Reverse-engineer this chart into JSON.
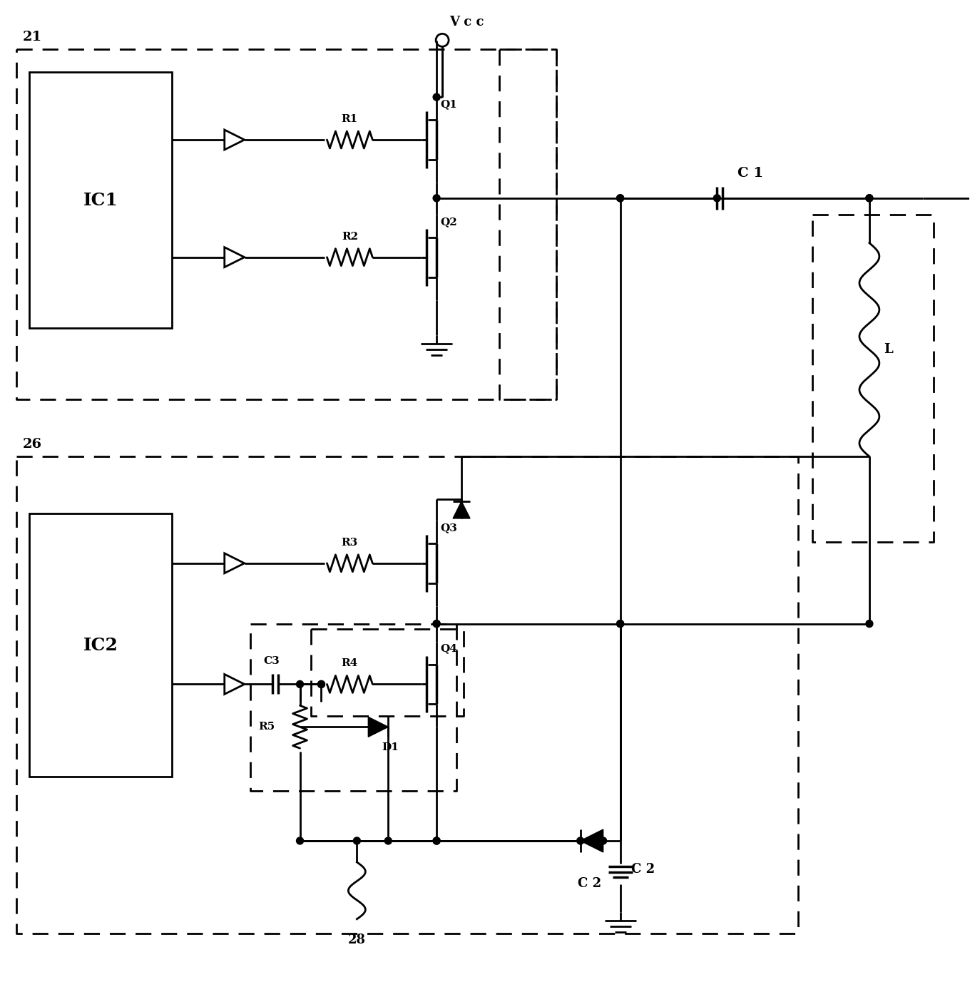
{
  "fig_w": 13.6,
  "fig_h": 13.77,
  "dpi": 100,
  "labels": {
    "module1": "21",
    "module2": "26",
    "ic1": "IC1",
    "ic2": "IC2",
    "vcc": "V c c",
    "c1": "C 1",
    "c2": "C 2",
    "c3": "C3",
    "L": "L",
    "R1": "R1",
    "R2": "R2",
    "R3": "R3",
    "R4": "R4",
    "R5": "R5",
    "Q1": "Q1",
    "Q2": "Q2",
    "Q3": "Q3",
    "Q4": "Q4",
    "D1": "D1",
    "node28": "28"
  }
}
